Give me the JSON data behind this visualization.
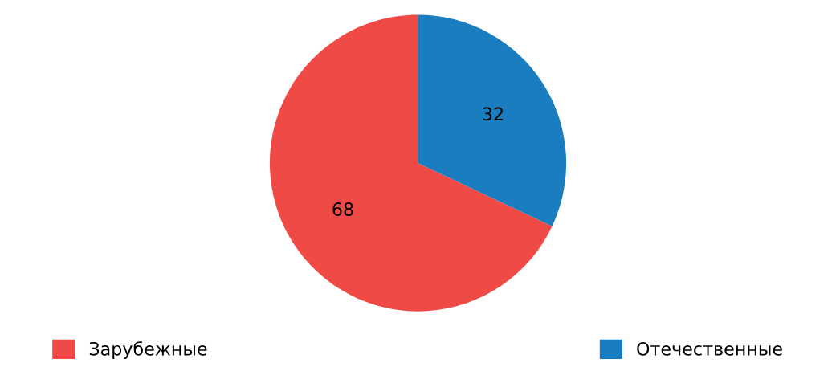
{
  "chart_data": {
    "type": "pie",
    "categories": [
      "Зарубежные",
      "Отечественные"
    ],
    "values": [
      68,
      32
    ],
    "colors": [
      "#ef4a45",
      "#1a7dc0"
    ],
    "data_labels": true,
    "legend": "bottom"
  }
}
